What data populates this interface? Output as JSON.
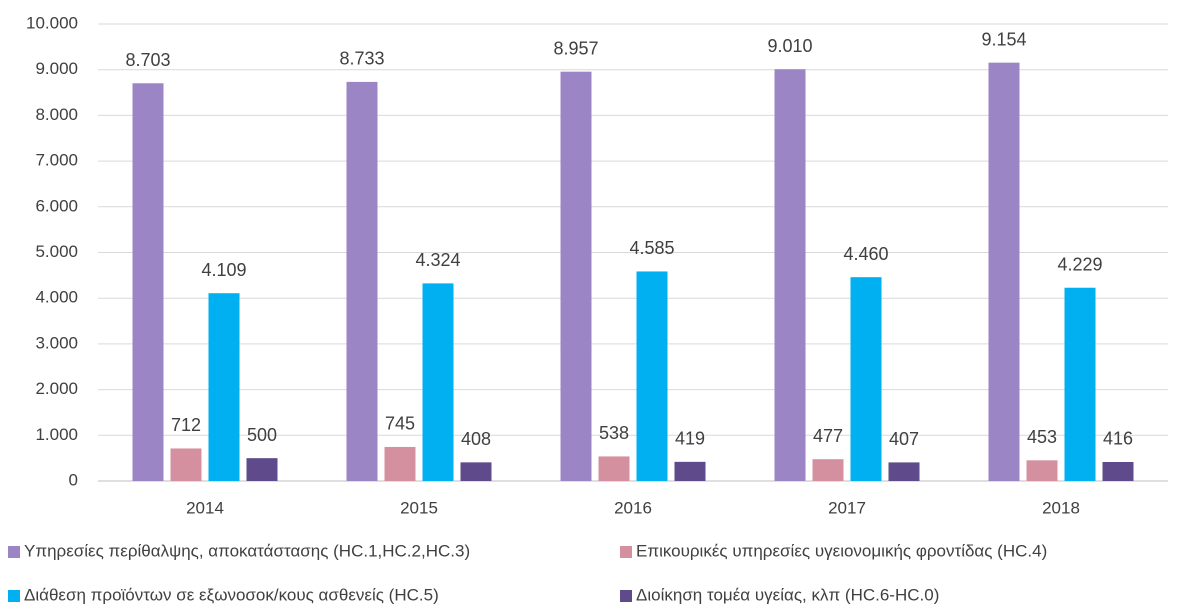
{
  "chart_data": {
    "type": "bar",
    "categories": [
      "2014",
      "2015",
      "2016",
      "2017",
      "2018"
    ],
    "series": [
      {
        "name": "Υπηρεσίες περίθαλψης, αποκατάστασης (HC.1,HC.2,HC.3)",
        "color": "#9b85c4",
        "values": [
          8703,
          8733,
          8957,
          9010,
          9154
        ],
        "value_labels": [
          "8.703",
          "8.733",
          "8.957",
          "9.010",
          "9.154"
        ]
      },
      {
        "name": "Επικουρικές υπηρεσίες υγειονομικής φροντίδας (HC.4)",
        "color": "#d4909f",
        "values": [
          712,
          745,
          538,
          477,
          453
        ],
        "value_labels": [
          "712",
          "745",
          "538",
          "477",
          "453"
        ]
      },
      {
        "name": "Διάθεση προϊόντων σε εξωνοσοκ/κους ασθενείς (HC.5)",
        "color": "#00b0f0",
        "values": [
          4109,
          4324,
          4585,
          4460,
          4229
        ],
        "value_labels": [
          "4.109",
          "4.324",
          "4.585",
          "4.460",
          "4.229"
        ]
      },
      {
        "name": "Διοίκηση τομέα υγείας, κλπ (HC.6-HC.0)",
        "color": "#5f4b8b",
        "values": [
          500,
          408,
          419,
          407,
          416
        ],
        "value_labels": [
          "500",
          "408",
          "419",
          "407",
          "416"
        ]
      }
    ],
    "ylim": [
      0,
      10000
    ],
    "yticks": [
      0,
      {
        "value": 1000,
        "label": "1.000"
      },
      {
        "value": 2000,
        "label": "2.000"
      },
      {
        "value": 3000,
        "label": "3.000"
      },
      {
        "value": 4000,
        "label": "4.000"
      },
      {
        "value": 5000,
        "label": "5.000"
      },
      {
        "value": 6000,
        "label": "6.000"
      },
      {
        "value": 7000,
        "label": "7.000"
      },
      {
        "value": 8000,
        "label": "8.000"
      },
      {
        "value": 9000,
        "label": "9.000"
      },
      {
        "value": 10000,
        "label": "10.000"
      }
    ],
    "grid": true,
    "legend": "bottom"
  }
}
